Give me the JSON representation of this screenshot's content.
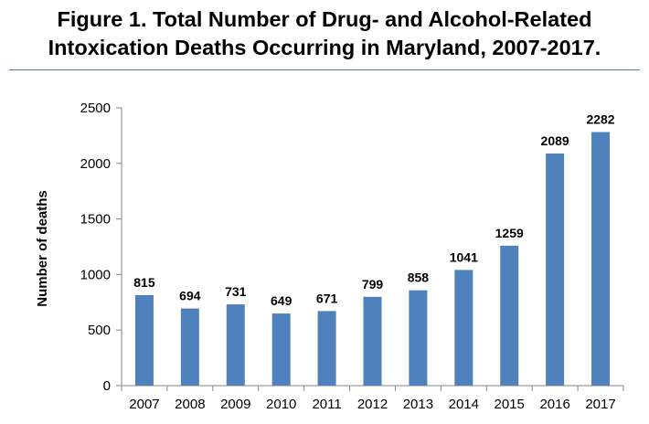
{
  "chart_data": {
    "type": "bar",
    "title": "Figure 1.  Total Number of Drug- and Alcohol-Related Intoxication Deaths Occurring in Maryland, 2007-2017.",
    "title_lines": [
      "Figure 1.  Total Number of Drug- and Alcohol-Related",
      "Intoxication Deaths Occurring in Maryland, 2007-2017."
    ],
    "xlabel": "",
    "ylabel": "Number of deaths",
    "categories": [
      "2007",
      "2008",
      "2009",
      "2010",
      "2011",
      "2012",
      "2013",
      "2014",
      "2015",
      "2016",
      "2017"
    ],
    "values": [
      815,
      694,
      731,
      649,
      671,
      799,
      858,
      1041,
      1259,
      2089,
      2282
    ],
    "ylim": [
      0,
      2500
    ],
    "yticks": [
      0,
      500,
      1000,
      1500,
      2000,
      2500
    ],
    "grid": false,
    "legend": "none",
    "bar_color": "#4f81bd",
    "data_labels": true
  }
}
